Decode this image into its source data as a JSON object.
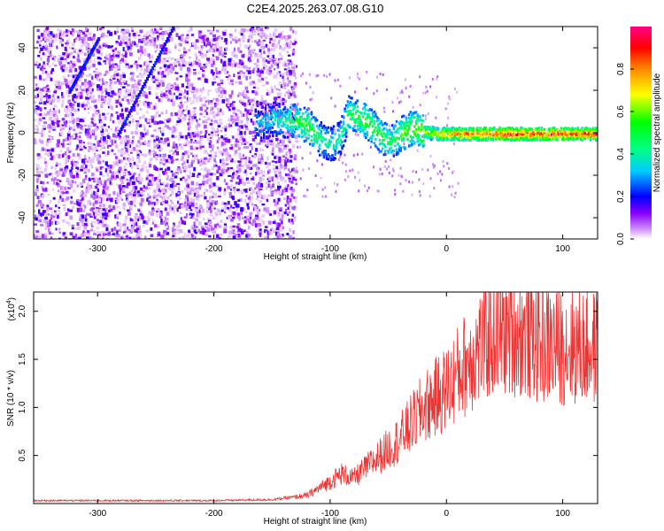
{
  "chart_data": [
    {
      "type": "heatmap",
      "title": "C2E4.2025.263.07.08.G10",
      "xlabel": "Height of straight line (km)",
      "ylabel": "Frequency (Hz)",
      "xlim": [
        -355,
        130
      ],
      "ylim": [
        -50,
        50
      ],
      "x_ticks": [
        -300,
        -200,
        -100,
        0,
        100
      ],
      "y_ticks": [
        -40,
        -20,
        0,
        20,
        40
      ],
      "colorbar": {
        "label": "Normalized spectral amplitude",
        "range": [
          0,
          1
        ],
        "ticks": [
          "0.0",
          "0.2",
          "0.4",
          "0.6",
          "0.8"
        ],
        "colors": [
          "#ffffff",
          "#cc88ff",
          "#8800ff",
          "#0000ff",
          "#00ccff",
          "#00ff88",
          "#00ff00",
          "#ffff00",
          "#ff8800",
          "#ff0000",
          "#ff0088"
        ]
      },
      "ridge": [
        {
          "x": -160,
          "y": 5,
          "a": 0.35
        },
        {
          "x": -150,
          "y": 7,
          "a": 0.4
        },
        {
          "x": -140,
          "y": 6,
          "a": 0.45
        },
        {
          "x": -130,
          "y": 6,
          "a": 0.55
        },
        {
          "x": -120,
          "y": 4,
          "a": 0.6
        },
        {
          "x": -110,
          "y": -2,
          "a": 0.5
        },
        {
          "x": -100,
          "y": -5,
          "a": 0.45
        },
        {
          "x": -92,
          "y": -2,
          "a": 0.45
        },
        {
          "x": -85,
          "y": 10,
          "a": 0.55
        },
        {
          "x": -78,
          "y": 8,
          "a": 0.55
        },
        {
          "x": -70,
          "y": 6,
          "a": 0.6
        },
        {
          "x": -62,
          "y": 2,
          "a": 0.6
        },
        {
          "x": -55,
          "y": -2,
          "a": 0.55
        },
        {
          "x": -48,
          "y": -4,
          "a": 0.5
        },
        {
          "x": -40,
          "y": 0,
          "a": 0.6
        },
        {
          "x": -30,
          "y": 3,
          "a": 0.65
        },
        {
          "x": -20,
          "y": 1,
          "a": 0.7
        },
        {
          "x": -10,
          "y": 0,
          "a": 0.75
        },
        {
          "x": 0,
          "y": 0,
          "a": 0.85
        },
        {
          "x": 20,
          "y": 0,
          "a": 0.9
        },
        {
          "x": 40,
          "y": 0,
          "a": 0.95
        },
        {
          "x": 60,
          "y": 0,
          "a": 0.95
        },
        {
          "x": 80,
          "y": 0,
          "a": 0.95
        },
        {
          "x": 100,
          "y": 0,
          "a": 0.95
        },
        {
          "x": 130,
          "y": 0,
          "a": 0.95
        }
      ],
      "streaks": [
        {
          "x0": -283,
          "y0": 0,
          "x1": -236,
          "y1": 50
        },
        {
          "x0": -325,
          "y0": 20,
          "x1": -300,
          "y1": 45
        }
      ]
    },
    {
      "type": "line",
      "xlabel": "Height of straight line (km)",
      "ylabel": "SNR (10 * v/v)",
      "y_scale_label": "(x10",
      "y_scale_exponent": "4",
      "xlim": [
        -355,
        130
      ],
      "ylim": [
        0,
        2.2
      ],
      "x_ticks": [
        -300,
        -200,
        -100,
        0,
        100
      ],
      "y_tick_labels": [
        "0.5",
        "1.0",
        "1.5",
        "2.0"
      ],
      "y_tick_values": [
        0.5,
        1.0,
        1.5,
        2.0
      ],
      "color": "#ee3333",
      "envelope": {
        "x": [
          -355,
          -200,
          -150,
          -120,
          -100,
          -90,
          -80,
          -60,
          -40,
          -20,
          0,
          20,
          40,
          60,
          80,
          100,
          130
        ],
        "y": [
          0.03,
          0.03,
          0.04,
          0.08,
          0.22,
          0.3,
          0.25,
          0.45,
          0.65,
          0.95,
          1.15,
          1.45,
          1.7,
          1.72,
          1.6,
          1.58,
          1.55
        ]
      }
    }
  ]
}
